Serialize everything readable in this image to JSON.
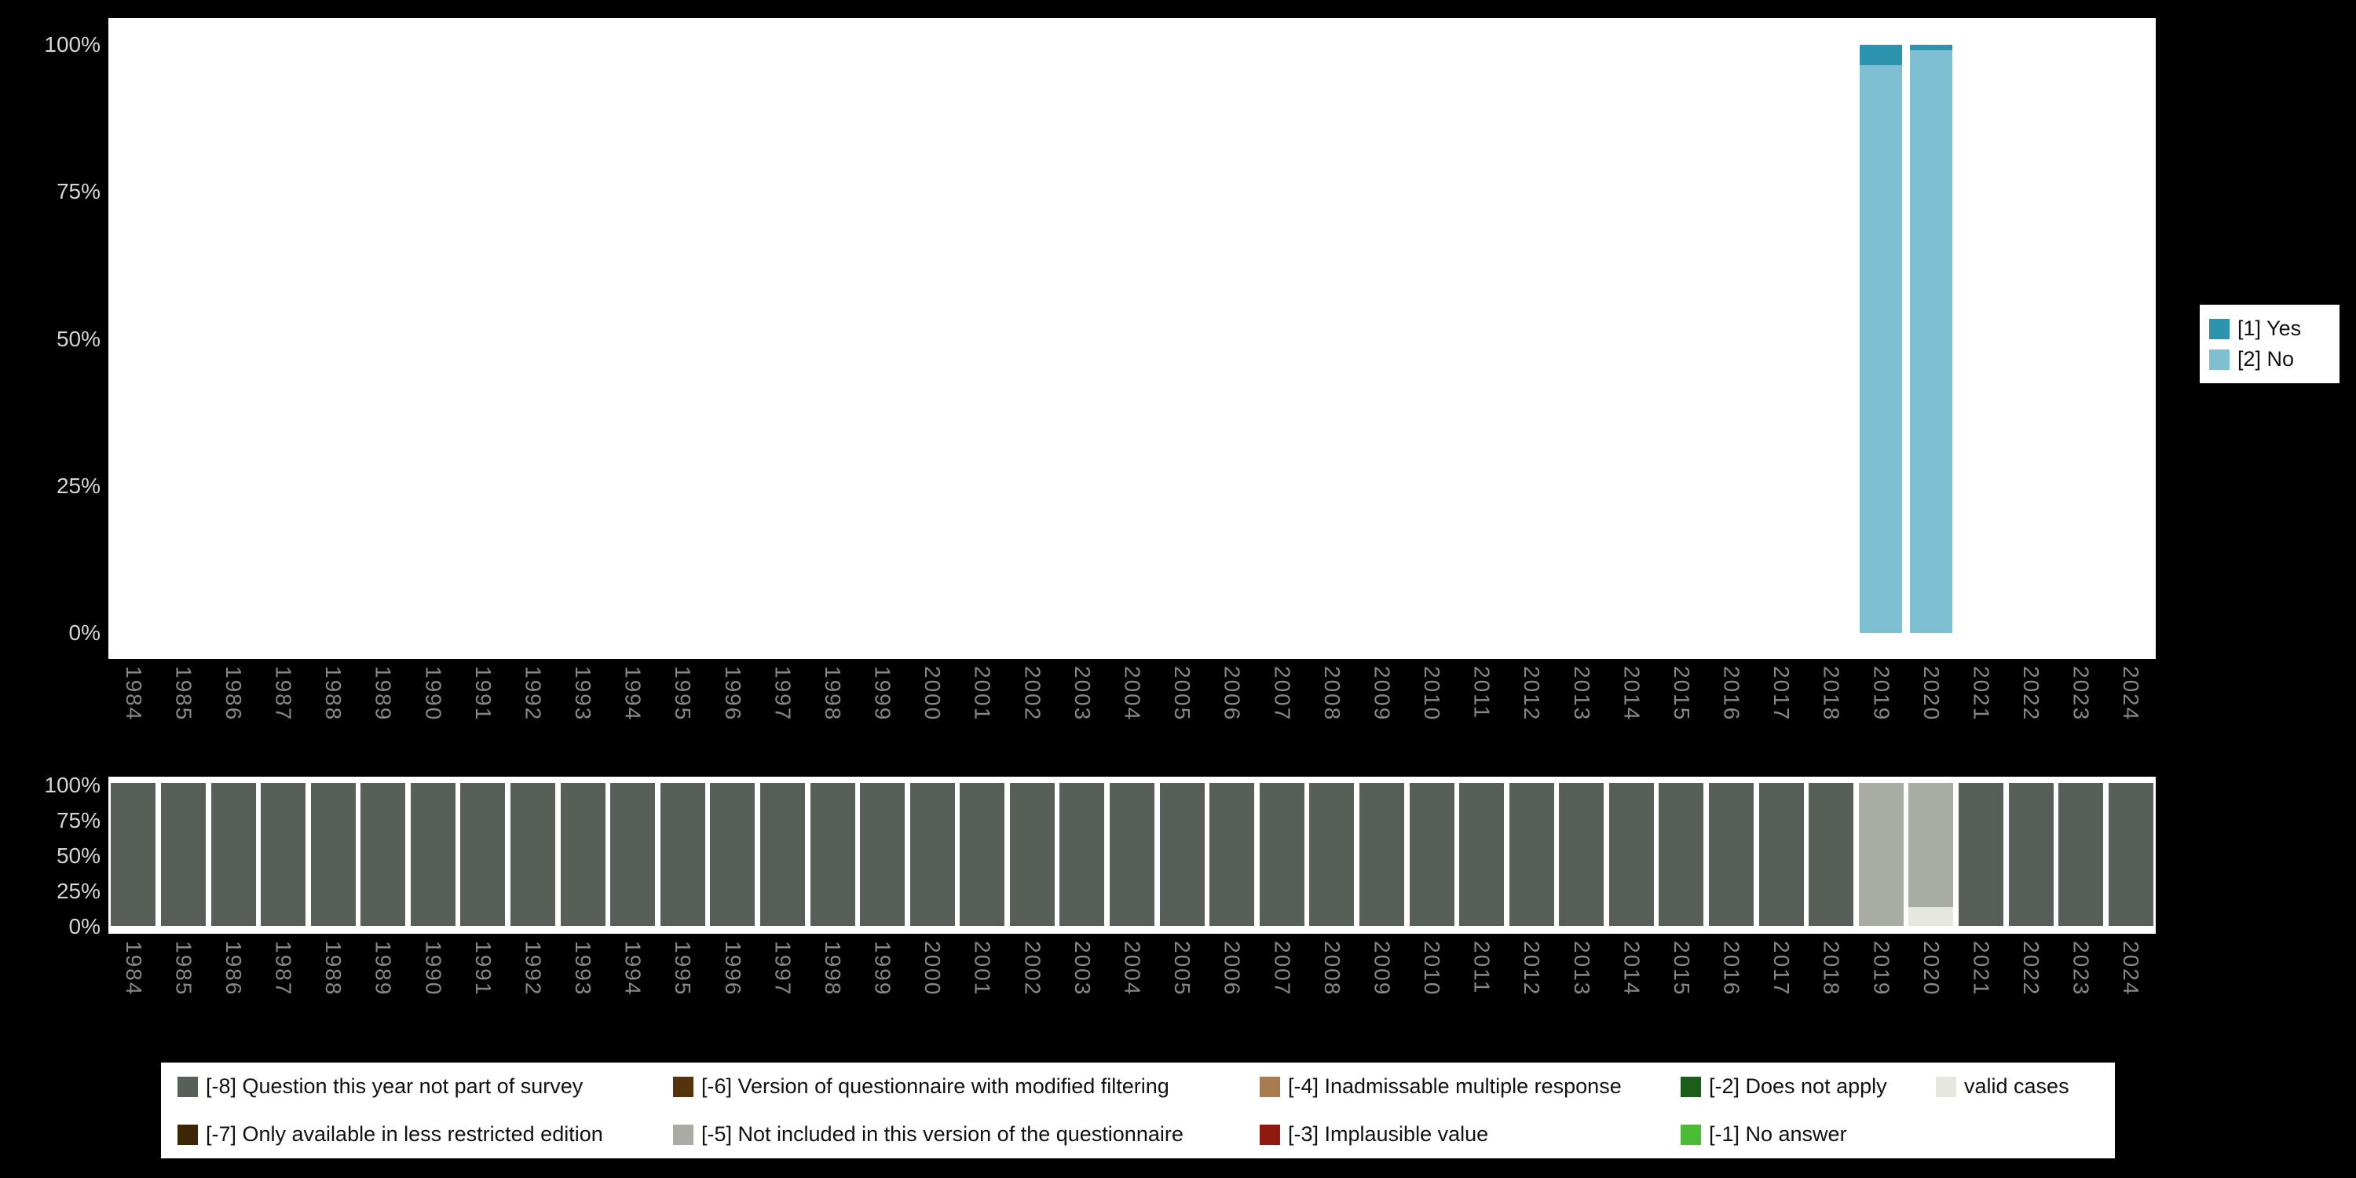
{
  "page": {
    "background": "#000000"
  },
  "top_legend": {
    "items": [
      {
        "label": "[1] Yes",
        "color": "#2e93ae"
      },
      {
        "label": "[2] No",
        "color": "#7fbfd2"
      }
    ]
  },
  "missing_legend": {
    "items": [
      {
        "code": "-8",
        "label": "[-8] Question this year not part of survey",
        "color": "#575f58"
      },
      {
        "code": "-7",
        "label": "[-7] Only available in less restricted edition",
        "color": "#3d2606"
      },
      {
        "code": "-6",
        "label": "[-6] Version of questionnaire with modified filtering",
        "color": "#54330d"
      },
      {
        "code": "-5",
        "label": "[-5] Not included in this version of the questionnaire",
        "color": "#a8aca4"
      },
      {
        "code": "-4",
        "label": "[-4] Inadmissable multiple response",
        "color": "#a87c50"
      },
      {
        "code": "-3",
        "label": "[-3] Implausible value",
        "color": "#8e1a10"
      },
      {
        "code": "-2",
        "label": "[-2] Does not apply",
        "color": "#1a5e1a"
      },
      {
        "code": "-1",
        "label": "[-1] No answer",
        "color": "#4bbb38"
      },
      {
        "code": "valid",
        "label": "valid cases",
        "color": "#e6e7e1"
      }
    ]
  },
  "chart_data": [
    {
      "id": "answers-by-year",
      "type": "bar",
      "stacked": true,
      "unit": "percent",
      "ylim": [
        0,
        100
      ],
      "yticks": [
        "100%",
        "75%",
        "50%",
        "25%",
        "0%"
      ],
      "legend_position": "right",
      "grid": false,
      "x": [
        1984,
        1985,
        1986,
        1987,
        1988,
        1989,
        1990,
        1991,
        1992,
        1993,
        1994,
        1995,
        1996,
        1997,
        1998,
        1999,
        2000,
        2001,
        2002,
        2003,
        2004,
        2005,
        2006,
        2007,
        2008,
        2009,
        2010,
        2011,
        2012,
        2013,
        2014,
        2015,
        2016,
        2017,
        2018,
        2019,
        2020,
        2021,
        2022,
        2023,
        2024
      ],
      "colors": {
        "yes": "#2e93ae",
        "no": "#7fbfd2"
      },
      "series_labels": {
        "yes": "[1] Yes",
        "no": "[2] No"
      },
      "bars": [
        {
          "year": 2019,
          "segments": [
            {
              "key": "yes",
              "value": 3.5
            },
            {
              "key": "no",
              "value": 96.5
            }
          ]
        },
        {
          "year": 2020,
          "segments": [
            {
              "key": "yes",
              "value": 1.0
            },
            {
              "key": "no",
              "value": 99.0
            }
          ]
        }
      ]
    },
    {
      "id": "missing-values-by-year",
      "type": "bar",
      "stacked": true,
      "unit": "percent",
      "ylim": [
        0,
        100
      ],
      "yticks": [
        "100%",
        "75%",
        "50%",
        "25%",
        "0%"
      ],
      "legend_position": "bottom",
      "grid": false,
      "x": [
        1984,
        1985,
        1986,
        1987,
        1988,
        1989,
        1990,
        1991,
        1992,
        1993,
        1994,
        1995,
        1996,
        1997,
        1998,
        1999,
        2000,
        2001,
        2002,
        2003,
        2004,
        2005,
        2006,
        2007,
        2008,
        2009,
        2010,
        2011,
        2012,
        2013,
        2014,
        2015,
        2016,
        2017,
        2018,
        2019,
        2020,
        2021,
        2022,
        2023,
        2024
      ],
      "colors": {
        "-8": "#575f58",
        "-5": "#a8aca4",
        "valid": "#e6e7e1"
      },
      "bars": [
        {
          "year": 1984,
          "segments": [
            {
              "key": "-8",
              "value": 100
            }
          ]
        },
        {
          "year": 1985,
          "segments": [
            {
              "key": "-8",
              "value": 100
            }
          ]
        },
        {
          "year": 1986,
          "segments": [
            {
              "key": "-8",
              "value": 100
            }
          ]
        },
        {
          "year": 1987,
          "segments": [
            {
              "key": "-8",
              "value": 100
            }
          ]
        },
        {
          "year": 1988,
          "segments": [
            {
              "key": "-8",
              "value": 100
            }
          ]
        },
        {
          "year": 1989,
          "segments": [
            {
              "key": "-8",
              "value": 100
            }
          ]
        },
        {
          "year": 1990,
          "segments": [
            {
              "key": "-8",
              "value": 100
            }
          ]
        },
        {
          "year": 1991,
          "segments": [
            {
              "key": "-8",
              "value": 100
            }
          ]
        },
        {
          "year": 1992,
          "segments": [
            {
              "key": "-8",
              "value": 100
            }
          ]
        },
        {
          "year": 1993,
          "segments": [
            {
              "key": "-8",
              "value": 100
            }
          ]
        },
        {
          "year": 1994,
          "segments": [
            {
              "key": "-8",
              "value": 100
            }
          ]
        },
        {
          "year": 1995,
          "segments": [
            {
              "key": "-8",
              "value": 100
            }
          ]
        },
        {
          "year": 1996,
          "segments": [
            {
              "key": "-8",
              "value": 100
            }
          ]
        },
        {
          "year": 1997,
          "segments": [
            {
              "key": "-8",
              "value": 100
            }
          ]
        },
        {
          "year": 1998,
          "segments": [
            {
              "key": "-8",
              "value": 100
            }
          ]
        },
        {
          "year": 1999,
          "segments": [
            {
              "key": "-8",
              "value": 100
            }
          ]
        },
        {
          "year": 2000,
          "segments": [
            {
              "key": "-8",
              "value": 100
            }
          ]
        },
        {
          "year": 2001,
          "segments": [
            {
              "key": "-8",
              "value": 100
            }
          ]
        },
        {
          "year": 2002,
          "segments": [
            {
              "key": "-8",
              "value": 100
            }
          ]
        },
        {
          "year": 2003,
          "segments": [
            {
              "key": "-8",
              "value": 100
            }
          ]
        },
        {
          "year": 2004,
          "segments": [
            {
              "key": "-8",
              "value": 100
            }
          ]
        },
        {
          "year": 2005,
          "segments": [
            {
              "key": "-8",
              "value": 100
            }
          ]
        },
        {
          "year": 2006,
          "segments": [
            {
              "key": "-8",
              "value": 100
            }
          ]
        },
        {
          "year": 2007,
          "segments": [
            {
              "key": "-8",
              "value": 100
            }
          ]
        },
        {
          "year": 2008,
          "segments": [
            {
              "key": "-8",
              "value": 100
            }
          ]
        },
        {
          "year": 2009,
          "segments": [
            {
              "key": "-8",
              "value": 100
            }
          ]
        },
        {
          "year": 2010,
          "segments": [
            {
              "key": "-8",
              "value": 100
            }
          ]
        },
        {
          "year": 2011,
          "segments": [
            {
              "key": "-8",
              "value": 100
            }
          ]
        },
        {
          "year": 2012,
          "segments": [
            {
              "key": "-8",
              "value": 100
            }
          ]
        },
        {
          "year": 2013,
          "segments": [
            {
              "key": "-8",
              "value": 100
            }
          ]
        },
        {
          "year": 2014,
          "segments": [
            {
              "key": "-8",
              "value": 100
            }
          ]
        },
        {
          "year": 2015,
          "segments": [
            {
              "key": "-8",
              "value": 100
            }
          ]
        },
        {
          "year": 2016,
          "segments": [
            {
              "key": "-8",
              "value": 100
            }
          ]
        },
        {
          "year": 2017,
          "segments": [
            {
              "key": "-8",
              "value": 100
            }
          ]
        },
        {
          "year": 2018,
          "segments": [
            {
              "key": "-8",
              "value": 100
            }
          ]
        },
        {
          "year": 2019,
          "segments": [
            {
              "key": "-5",
              "value": 100
            }
          ]
        },
        {
          "year": 2020,
          "segments": [
            {
              "key": "-5",
              "value": 87
            },
            {
              "key": "valid",
              "value": 13
            }
          ]
        },
        {
          "year": 2021,
          "segments": [
            {
              "key": "-8",
              "value": 100
            }
          ]
        },
        {
          "year": 2022,
          "segments": [
            {
              "key": "-8",
              "value": 100
            }
          ]
        },
        {
          "year": 2023,
          "segments": [
            {
              "key": "-8",
              "value": 100
            }
          ]
        },
        {
          "year": 2024,
          "segments": [
            {
              "key": "-8",
              "value": 100
            }
          ]
        }
      ]
    }
  ]
}
